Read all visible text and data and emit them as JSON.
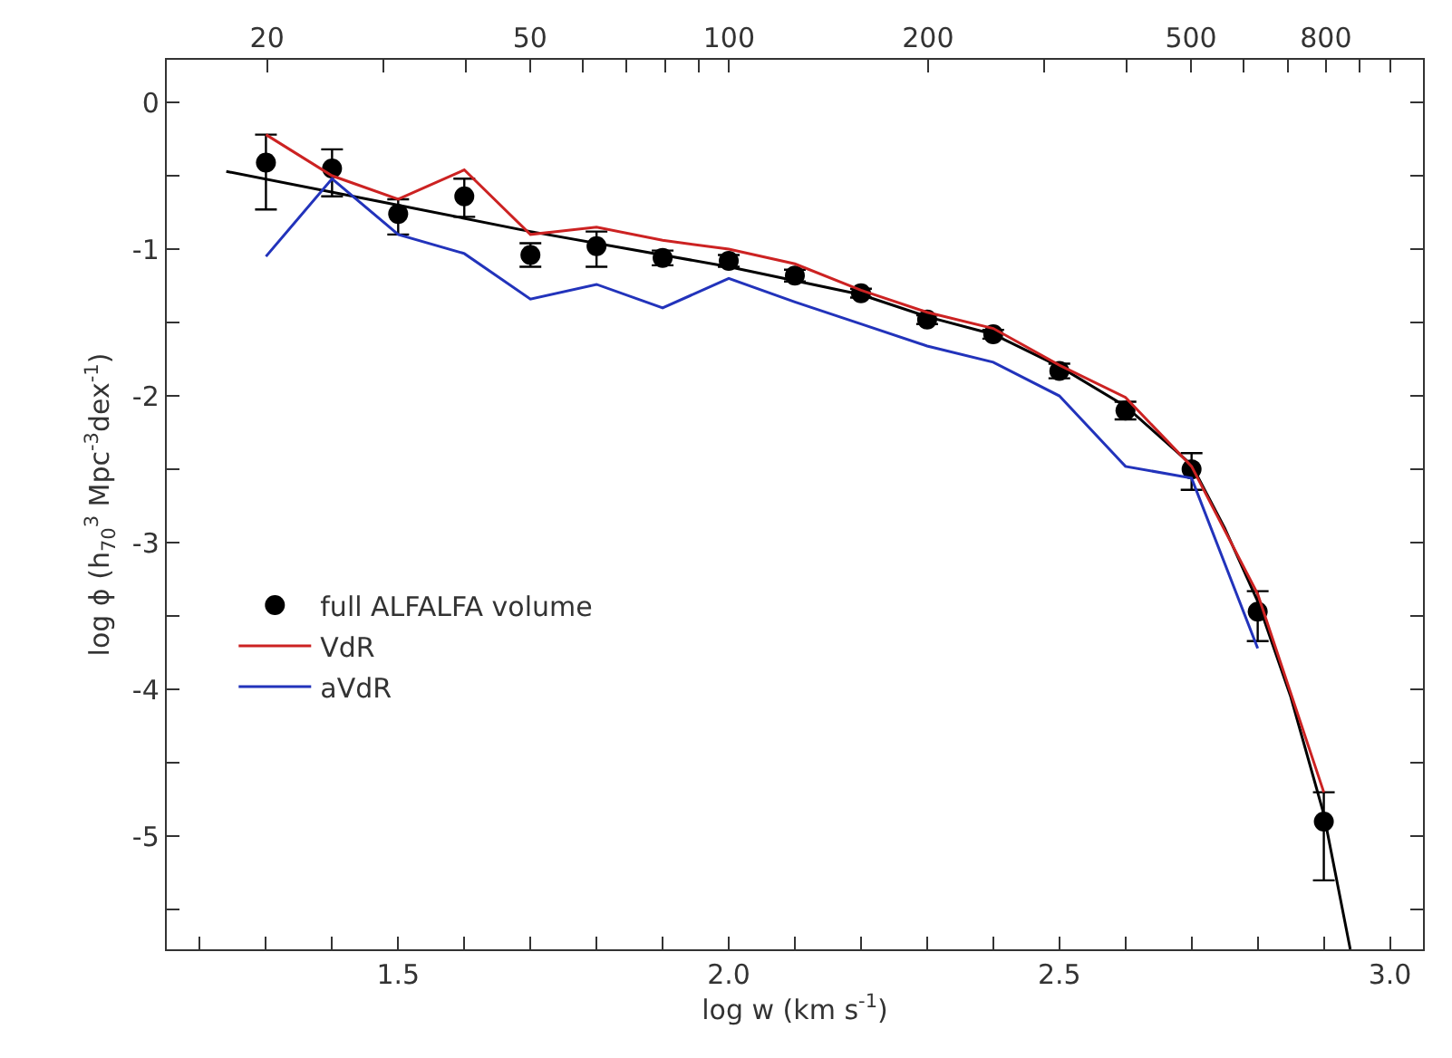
{
  "chart_data": {
    "type": "scatter",
    "xlabel": "log w (km s$^{-1}$)",
    "ylabel": "log ϕ (h$_{70}$$^{3}$ Mpc$^{-3}$dex$^{-1}$)",
    "xlim": [
      1.15,
      3.05
    ],
    "ylim": [
      -5.77,
      0.29
    ],
    "xticks": [
      {
        "value": 1.2,
        "label": null
      },
      {
        "value": 1.3,
        "label": null
      },
      {
        "value": 1.4,
        "label": null
      },
      {
        "value": 1.5,
        "label": "1.5"
      },
      {
        "value": 1.6,
        "label": null
      },
      {
        "value": 1.7,
        "label": null
      },
      {
        "value": 1.8,
        "label": null
      },
      {
        "value": 1.9,
        "label": null
      },
      {
        "value": 2.0,
        "label": "2.0"
      },
      {
        "value": 2.1,
        "label": null
      },
      {
        "value": 2.2,
        "label": null
      },
      {
        "value": 2.3,
        "label": null
      },
      {
        "value": 2.4,
        "label": null
      },
      {
        "value": 2.5,
        "label": "2.5"
      },
      {
        "value": 2.6,
        "label": null
      },
      {
        "value": 2.7,
        "label": null
      },
      {
        "value": 2.8,
        "label": null
      },
      {
        "value": 2.9,
        "label": null
      },
      {
        "value": 3.0,
        "label": "3.0"
      }
    ],
    "x2lim": [
      14.1,
      1122
    ],
    "log": "x2",
    "x2ticks": [
      20,
      {
        "value": 30,
        "label": null
      },
      {
        "value": 40,
        "label": null
      },
      50,
      {
        "value": 60,
        "label": null
      },
      {
        "value": 70,
        "label": null
      },
      {
        "value": 80,
        "label": null
      },
      {
        "value": 90,
        "label": null
      },
      100,
      200,
      {
        "value": 300,
        "label": null
      },
      {
        "value": 400,
        "label": null
      },
      500,
      {
        "value": 600,
        "label": null
      },
      {
        "value": 700,
        "label": null
      },
      800,
      {
        "value": 900,
        "label": null
      },
      {
        "value": 1000,
        "label": null
      }
    ],
    "yticks": [
      0,
      {
        "value": -0.5,
        "label": null
      },
      -1,
      {
        "value": -1.5,
        "label": null
      },
      -2,
      {
        "value": -2.5,
        "label": null
      },
      -3,
      {
        "value": -3.5,
        "label": null
      },
      -4,
      {
        "value": -4.5,
        "label": null
      },
      -5,
      {
        "value": -5.5,
        "label": null
      }
    ],
    "legend": "left",
    "series": [
      {
        "name": "full ALFALFA volume",
        "marker": "circle",
        "color": "#000000",
        "x": [
          1.3,
          1.4,
          1.5,
          1.6,
          1.7,
          1.8,
          1.9,
          2.0,
          2.1,
          2.2,
          2.3,
          2.4,
          2.5,
          2.6,
          2.7,
          2.8,
          2.9
        ],
        "values": [
          -0.41,
          -0.45,
          -0.76,
          -0.64,
          -1.04,
          -0.98,
          -1.06,
          -1.08,
          -1.18,
          -1.3,
          -1.48,
          -1.58,
          -1.83,
          -2.1,
          -2.5,
          -3.47,
          -4.9
        ],
        "errors": [
          [
            -0.73,
            -0.22
          ],
          [
            -0.64,
            -0.32
          ],
          [
            -0.9,
            -0.66
          ],
          [
            -0.78,
            -0.52
          ],
          [
            -1.12,
            -0.96
          ],
          [
            -1.12,
            -0.88
          ],
          0.05,
          0.04,
          0.04,
          0.03,
          0.03,
          0.03,
          0.05,
          0.06,
          [
            -2.64,
            -2.39
          ],
          [
            -3.67,
            -3.33
          ],
          [
            -5.3,
            -4.7
          ]
        ]
      },
      {
        "type": "line",
        "color": "#000000",
        "x": [
          1.24,
          1.5,
          1.7,
          2.0,
          2.2,
          2.3,
          2.4,
          2.5,
          2.6,
          2.7,
          2.75,
          2.8,
          2.85,
          2.9,
          2.94
        ],
        "values": [
          -0.47,
          -0.7,
          -0.88,
          -1.12,
          -1.31,
          -1.46,
          -1.58,
          -1.8,
          -2.07,
          -2.47,
          -2.9,
          -3.4,
          -4.05,
          -4.85,
          -5.77
        ]
      },
      {
        "name": "VdR",
        "type": "line",
        "color": "#cc2222",
        "x": [
          1.3,
          1.4,
          1.5,
          1.6,
          1.7,
          1.8,
          1.9,
          2.0,
          2.1,
          2.2,
          2.3,
          2.4,
          2.5,
          2.6,
          2.7,
          2.8,
          2.9
        ],
        "values": [
          -0.22,
          -0.5,
          -0.66,
          -0.46,
          -0.9,
          -0.85,
          -0.94,
          -1.0,
          -1.1,
          -1.28,
          -1.43,
          -1.54,
          -1.79,
          -2.01,
          -2.48,
          -3.35,
          -4.7
        ]
      },
      {
        "name": "aVdR",
        "type": "line",
        "color": "#2233bb",
        "x": [
          1.3,
          1.4,
          1.5,
          1.6,
          1.7,
          1.8,
          1.9,
          2.0,
          2.1,
          2.2,
          2.3,
          2.4,
          2.5,
          2.6,
          2.7,
          2.8
        ],
        "values": [
          -1.05,
          -0.52,
          -0.9,
          -1.03,
          -1.34,
          -1.24,
          -1.4,
          -1.2,
          -1.36,
          -1.51,
          -1.66,
          -1.77,
          -2.0,
          -2.48,
          -2.56,
          -3.72
        ]
      }
    ]
  }
}
